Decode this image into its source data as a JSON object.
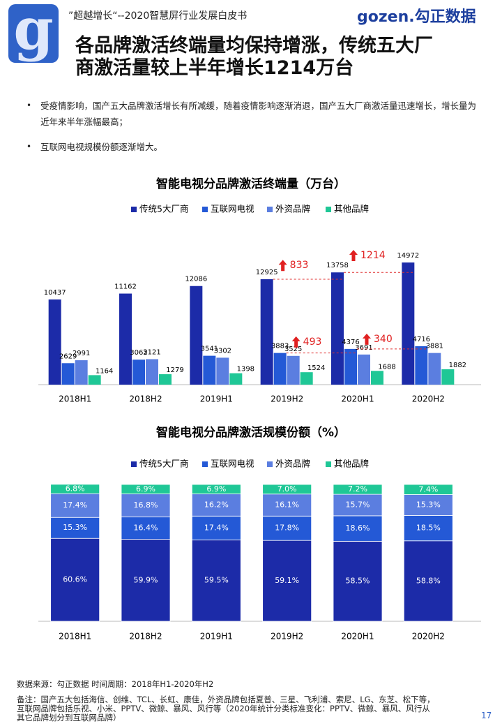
{
  "header": {
    "logo_mark": "g",
    "subtitle": "”超越增长“--2020智慧屏行业发展白皮书",
    "brand": "gozen.勾正数据",
    "title_lines": [
      "各品牌激活终端量均保持增涨，传统五大厂",
      "商激活量较上半年增长1214万台"
    ]
  },
  "bullets": [
    "受疫情影响，国产五大品牌激活增长有所减缓，随着疫情影响逐渐消退，国产五大厂商激活量迅速增长，增长量为近年来半年涨幅最高；",
    "互联网电视规模份额逐渐增大。"
  ],
  "chart_data": [
    {
      "type": "bar",
      "title": "智能电视分品牌激活终端量（万台）",
      "categories": [
        "2018H1",
        "2018H2",
        "2019H1",
        "2019H2",
        "2020H1",
        "2020H2"
      ],
      "ylim": [
        0,
        16000
      ],
      "series": [
        {
          "name": "传统5大厂商",
          "color": "#1c2ba8",
          "values": [
            10437,
            11162,
            12086,
            12925,
            13758,
            14972
          ]
        },
        {
          "name": "互联网电视",
          "color": "#2459d6",
          "values": [
            2629,
            3062,
            3541,
            3883,
            4376,
            4716
          ]
        },
        {
          "name": "外资品牌",
          "color": "#5b7ee0",
          "values": [
            2991,
            3121,
            3302,
            3525,
            3691,
            3881
          ]
        },
        {
          "name": "其他品牌",
          "color": "#1fc796",
          "values": [
            1164,
            1279,
            1398,
            1524,
            1688,
            1882
          ]
        }
      ],
      "annotations": [
        "833",
        "1214",
        "493",
        "340"
      ]
    },
    {
      "type": "stacked_bar",
      "title": "智能电视分品牌激活规模份额（%）",
      "categories": [
        "2018H1",
        "2018H2",
        "2019H1",
        "2019H2",
        "2020H1",
        "2020H2"
      ],
      "ylim": [
        0,
        100
      ],
      "series": [
        {
          "name": "传统5大厂商",
          "color": "#1c2ba8",
          "values": [
            60.6,
            59.9,
            59.5,
            59.1,
            58.5,
            58.8
          ],
          "value_labels": [
            "60.6%",
            "59.9%",
            "59.5%",
            "59.1%",
            "58.5%",
            "58.8%"
          ]
        },
        {
          "name": "互联网电视",
          "color": "#2459d6",
          "values": [
            15.3,
            16.4,
            17.4,
            17.8,
            18.6,
            18.5
          ],
          "value_labels": [
            "15.3%",
            "16.4%",
            "17.4%",
            "17.8%",
            "18.6%",
            "18.5%"
          ]
        },
        {
          "name": "外资品牌",
          "color": "#5b7ee0",
          "values": [
            17.4,
            16.8,
            16.2,
            16.1,
            15.7,
            15.3
          ],
          "value_labels": [
            "17.4%",
            "16.8%",
            "16.2%",
            "16.1%",
            "15.7%",
            "15.3%"
          ]
        },
        {
          "name": "其他品牌",
          "color": "#1fc796",
          "values": [
            6.8,
            6.9,
            6.9,
            7.0,
            7.2,
            7.4
          ],
          "value_labels": [
            "6.8%",
            "6.9%",
            "6.9%",
            "7.0%",
            "7.2%",
            "7.4%"
          ]
        }
      ]
    }
  ],
  "footer": {
    "source": "数据来源：勾正数据 时间周期：2018年H1-2020年H2",
    "note_lines": [
      "备注：国产五大包括海信、创维、TCL、长虹、康佳，外资品牌包括夏普、三星、飞利浦、索尼、LG、东芝、松下等，",
      "互联网品牌包括乐视、小米、PPTV、微鲸、暴风、风行等（2020年统计分类标准变化：PPTV、微鲸、暴风、风行从",
      "其它品牌划分到互联网品牌）"
    ],
    "page_number": "17"
  }
}
